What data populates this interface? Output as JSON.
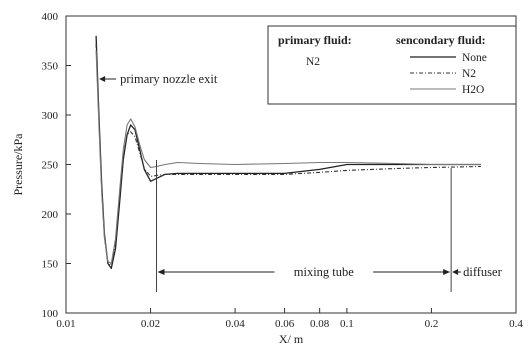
{
  "chart_data": {
    "type": "line",
    "title": "",
    "xlabel": "X/ m",
    "ylabel": "Pressure/kPa",
    "x_scale": "log",
    "xlim": [
      0.01,
      0.4
    ],
    "ylim": [
      100,
      400
    ],
    "x_ticks": [
      0.01,
      0.02,
      0.04,
      0.06,
      0.08,
      0.1,
      0.2,
      0.4
    ],
    "x_tick_labels": [
      "0.01",
      "0.02",
      "0.04",
      "0.06",
      "0.08",
      "0.1",
      "0.2",
      "0.4"
    ],
    "y_ticks": [
      100,
      150,
      200,
      250,
      300,
      350,
      400
    ],
    "y_tick_labels": [
      "100",
      "150",
      "200",
      "250",
      "300",
      "350",
      "400"
    ],
    "grid": false,
    "legend": {
      "placement": "top-right",
      "primary_heading": "primary fluid:",
      "primary_value": "N2",
      "secondary_heading": "sencondary fluid:",
      "entries": [
        "None",
        "N2",
        "H2O"
      ]
    },
    "series": [
      {
        "name": "None",
        "style": "solid",
        "x": [
          0.0128,
          0.0131,
          0.0134,
          0.0137,
          0.0141,
          0.0145,
          0.015,
          0.0155,
          0.016,
          0.0165,
          0.017,
          0.0176,
          0.0183,
          0.019,
          0.02,
          0.021,
          0.0225,
          0.025,
          0.03,
          0.04,
          0.06,
          0.08,
          0.1,
          0.15,
          0.2,
          0.3
        ],
        "y": [
          380,
          300,
          230,
          180,
          150,
          145,
          165,
          210,
          255,
          280,
          290,
          285,
          265,
          245,
          233,
          236,
          240,
          241,
          241,
          241,
          241,
          245,
          250,
          250,
          250,
          250
        ]
      },
      {
        "name": "N2",
        "style": "dash-dot",
        "x": [
          0.0128,
          0.0131,
          0.0134,
          0.0137,
          0.0141,
          0.0145,
          0.015,
          0.0155,
          0.016,
          0.0165,
          0.017,
          0.0176,
          0.0183,
          0.019,
          0.02,
          0.021,
          0.0225,
          0.025,
          0.03,
          0.04,
          0.06,
          0.08,
          0.1,
          0.15,
          0.2,
          0.3
        ],
        "y": [
          372,
          295,
          225,
          178,
          150,
          148,
          170,
          215,
          258,
          280,
          283,
          278,
          262,
          246,
          238,
          239,
          240,
          240,
          240,
          240,
          240,
          242,
          244,
          246,
          247,
          248
        ]
      },
      {
        "name": "H2O",
        "style": "solid-thin",
        "x": [
          0.0128,
          0.0131,
          0.0134,
          0.0137,
          0.0141,
          0.0145,
          0.015,
          0.0155,
          0.016,
          0.0165,
          0.017,
          0.0176,
          0.0183,
          0.019,
          0.02,
          0.021,
          0.0225,
          0.025,
          0.03,
          0.04,
          0.06,
          0.08,
          0.1,
          0.15,
          0.2,
          0.3
        ],
        "y": [
          365,
          290,
          222,
          176,
          152,
          150,
          175,
          222,
          265,
          290,
          296,
          288,
          270,
          255,
          247,
          248,
          250,
          252,
          251,
          250,
          251,
          252,
          252,
          251,
          250,
          250
        ]
      }
    ],
    "annotations": [
      {
        "text": "primary nozzle exit",
        "x": 0.0128
      },
      {
        "text": "mixing tube",
        "from": 0.021,
        "to": 0.235
      },
      {
        "text": "diffuser",
        "x": 0.235
      }
    ]
  }
}
